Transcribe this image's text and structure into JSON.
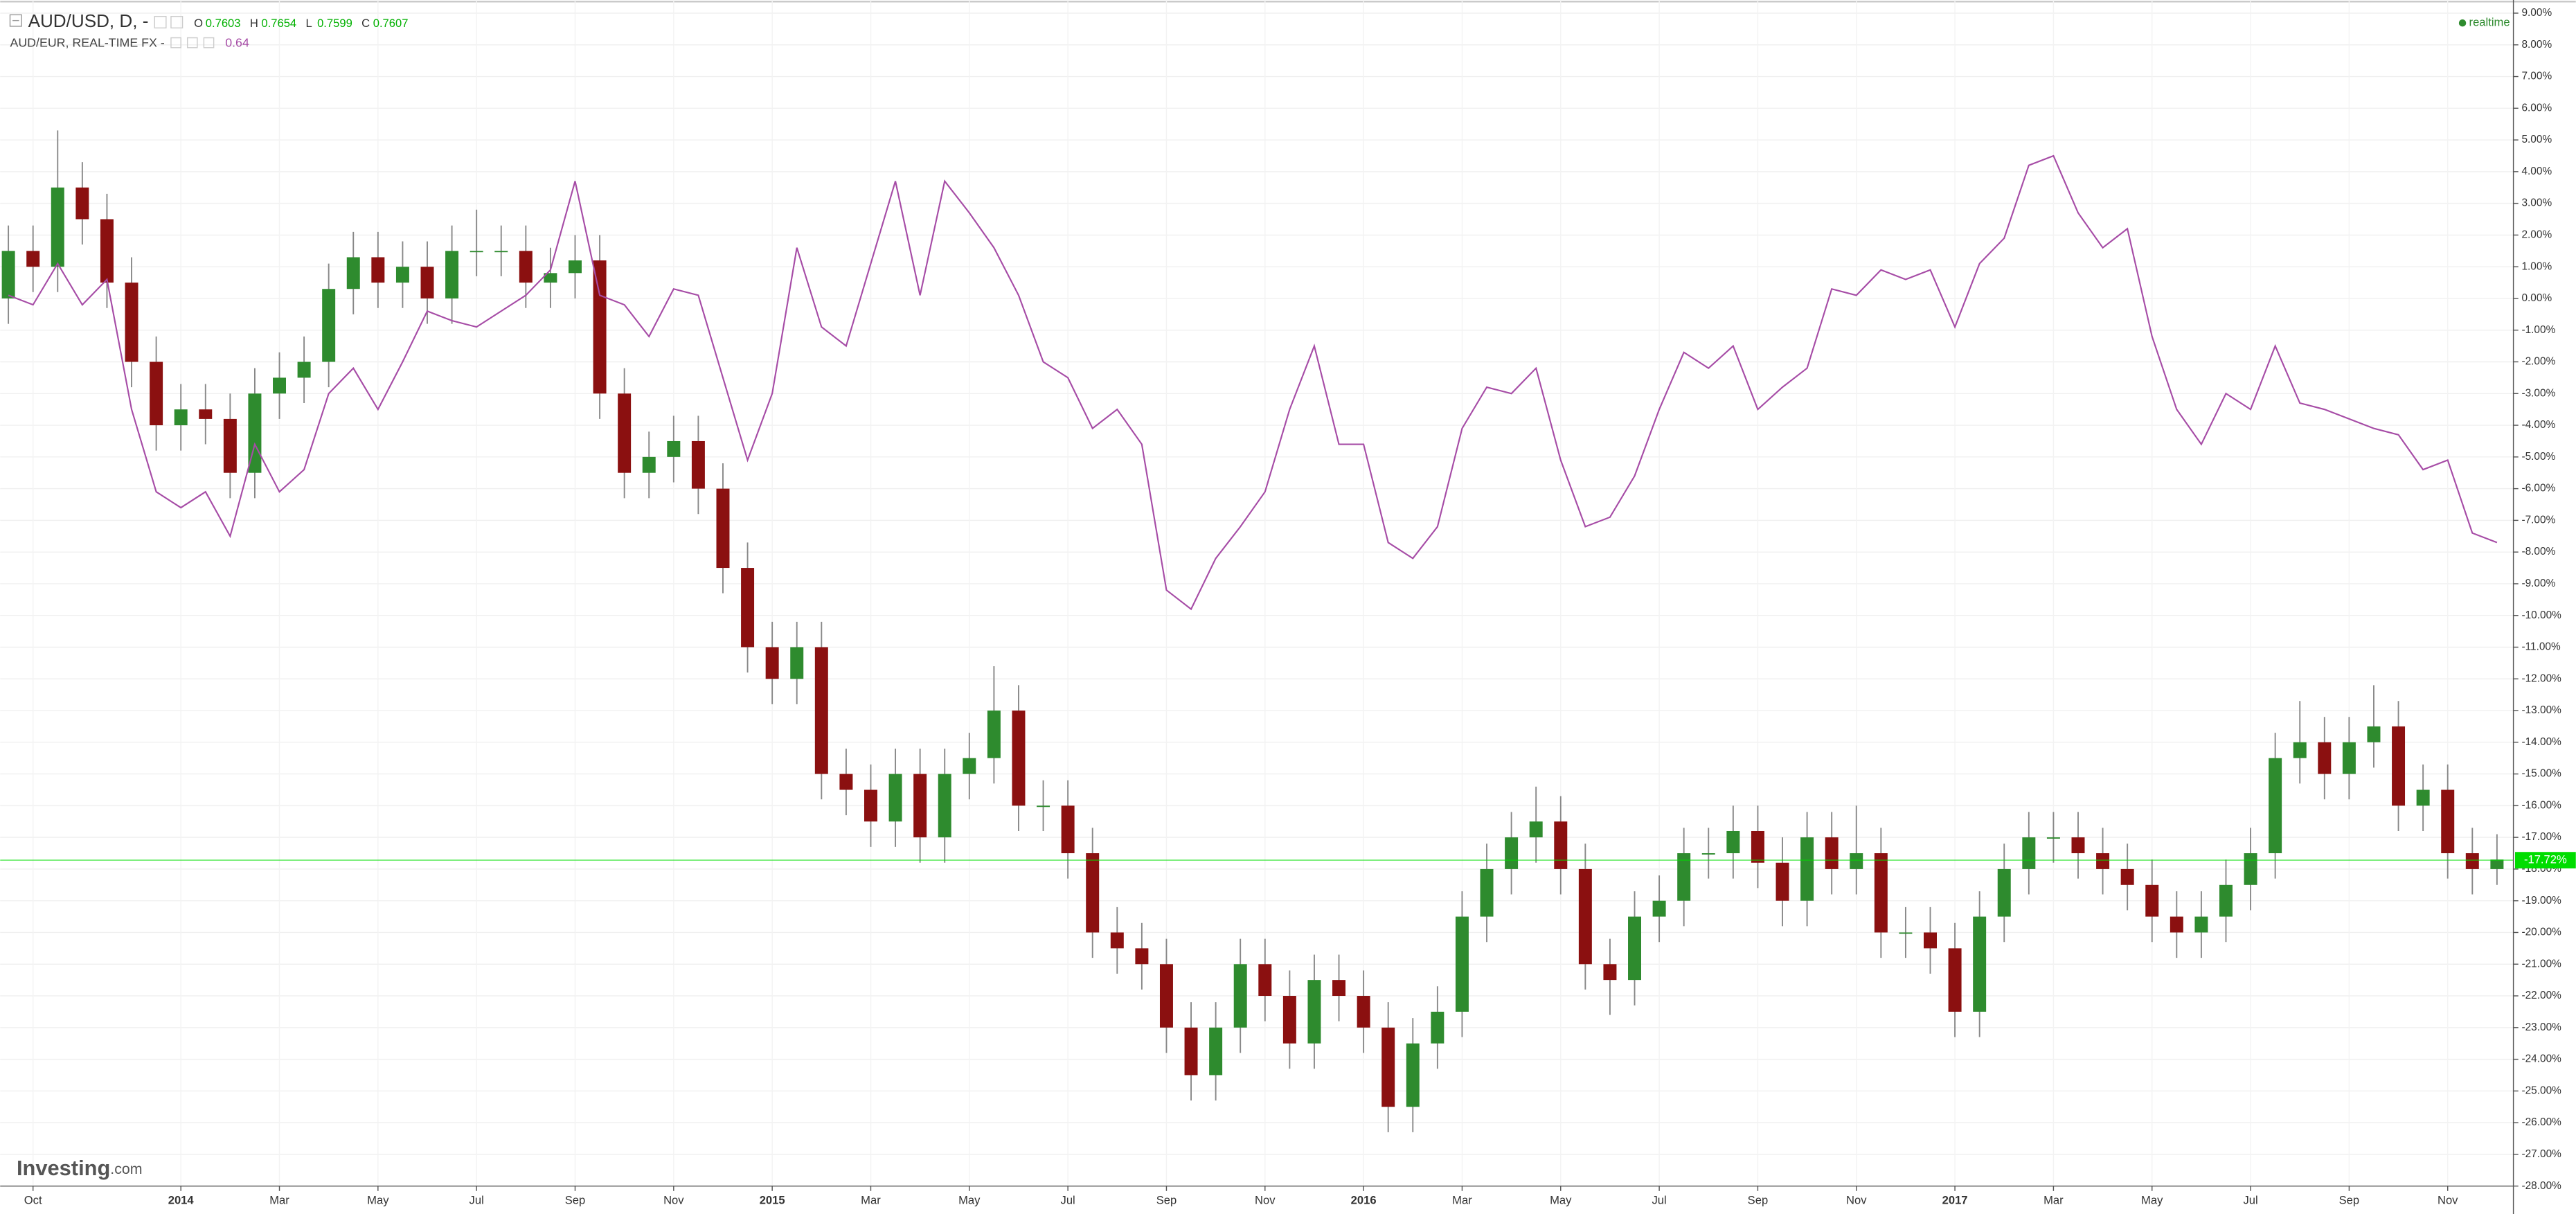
{
  "chart_data": {
    "type": "candlestick",
    "categories": [
      null,
      "Oct",
      null,
      null,
      null,
      null,
      null,
      "2014",
      null,
      null,
      null,
      "Mar",
      null,
      null,
      null,
      "May",
      null,
      null,
      null,
      "Jul",
      null,
      null,
      null,
      "Sep",
      null,
      null,
      null,
      "Nov",
      null,
      null,
      null,
      "2015",
      null,
      null,
      null,
      "Mar",
      null,
      null,
      null,
      "May",
      null,
      null,
      null,
      "Jul",
      null,
      null,
      null,
      "Sep",
      null,
      null,
      null,
      "Nov",
      null,
      null,
      null,
      "2016",
      null,
      null,
      null,
      "Mar",
      null,
      null,
      null,
      "May",
      null,
      null,
      null,
      "Jul",
      null,
      null,
      null,
      "Sep",
      null,
      null,
      null,
      "Nov",
      null,
      null,
      null,
      "2017",
      null,
      null,
      null,
      "Mar",
      null,
      null,
      null,
      "May",
      null,
      null,
      null,
      "Jul",
      null,
      null,
      null,
      "Sep",
      null,
      null,
      null,
      "Nov",
      null,
      null
    ],
    "ylim": [
      -28,
      9
    ],
    "yticks": [
      {
        "value": 9,
        "label": "9.00%"
      },
      {
        "value": 8,
        "label": "8.00%"
      },
      {
        "value": 7,
        "label": "7.00%"
      },
      {
        "value": 6,
        "label": "6.00%"
      },
      {
        "value": 5,
        "label": "5.00%"
      },
      {
        "value": 4,
        "label": "4.00%"
      },
      {
        "value": 3,
        "label": "3.00%"
      },
      {
        "value": 2,
        "label": "2.00%"
      },
      {
        "value": 1,
        "label": "1.00%"
      },
      {
        "value": 0,
        "label": "0.00%"
      },
      {
        "value": -1,
        "label": "-1.00%"
      },
      {
        "value": -2,
        "label": "-2.00%"
      },
      {
        "value": -3,
        "label": "-3.00%"
      },
      {
        "value": -4,
        "label": "-4.00%"
      },
      {
        "value": -5,
        "label": "-5.00%"
      },
      {
        "value": -6,
        "label": "-6.00%"
      },
      {
        "value": -7,
        "label": "-7.00%"
      },
      {
        "value": -8,
        "label": "-8.00%"
      },
      {
        "value": -9,
        "label": "-9.00%"
      },
      {
        "value": -10,
        "label": "-10.00%"
      },
      {
        "value": -11,
        "label": "-11.00%"
      },
      {
        "value": -12,
        "label": "-12.00%"
      },
      {
        "value": -13,
        "label": "-13.00%"
      },
      {
        "value": -14,
        "label": "-14.00%"
      },
      {
        "value": -15,
        "label": "-15.00%"
      },
      {
        "value": -16,
        "label": "-16.00%"
      },
      {
        "value": -17,
        "label": "-17.00%"
      },
      {
        "value": -18,
        "label": "-18.00%"
      },
      {
        "value": -19,
        "label": "-19.00%"
      },
      {
        "value": -20,
        "label": "-20.00%"
      },
      {
        "value": -21,
        "label": "-21.00%"
      },
      {
        "value": -22,
        "label": "-22.00%"
      },
      {
        "value": -23,
        "label": "-23.00%"
      },
      {
        "value": -24,
        "label": "-24.00%"
      },
      {
        "value": -25,
        "label": "-25.00%"
      },
      {
        "value": -26,
        "label": "-26.00%"
      },
      {
        "value": -27,
        "label": "-27.00%"
      },
      {
        "value": -28,
        "label": "-28.00%"
      }
    ],
    "grid": true,
    "price_line": {
      "value": -17.72,
      "label": "-17.72%",
      "color": "#00dd00"
    },
    "status": "realtime",
    "watermark": "Investing",
    "watermark_suffix": ".com",
    "series": [
      {
        "name": "AUD/USD, D, -",
        "type": "candlestick",
        "up_color": "#2e8b2e",
        "down_color": "#8b1010",
        "wick_color": "#888888",
        "ohlc_legend": [
          {
            "label": "O",
            "value": 0.7603
          },
          {
            "label": "H",
            "value": 0.7654
          },
          {
            "label": "L",
            "value": 0.7599
          },
          {
            "label": "C",
            "value": 0.7607
          }
        ],
        "open": [
          0,
          1.5,
          1.0,
          3.5,
          2.5,
          0.5,
          -2.0,
          -4.0,
          -3.5,
          -3.8,
          -5.5,
          -3.0,
          -2.5,
          -2.0,
          0.3,
          1.3,
          0.5,
          1.0,
          0,
          1.5,
          1.5,
          1.5,
          0.5,
          0.8,
          1.2,
          -3.0,
          -5.5,
          -5.0,
          -4.5,
          -6.0,
          -8.5,
          -11.0,
          -12.0,
          -11.0,
          -15.0,
          -15.5,
          -16.5,
          -15.0,
          -17.0,
          -15.0,
          -14.5,
          -13.0,
          -16.0,
          -16.0,
          -17.5,
          -20.0,
          -20.5,
          -21.0,
          -23.0,
          -24.5,
          -23.0,
          -21.0,
          -22.0,
          -23.5,
          -21.5,
          -22.0,
          -23.0,
          -25.5,
          -23.5,
          -22.5,
          -19.5,
          -18.0,
          -17.0,
          -16.5,
          -18.0,
          -21.0,
          -21.5,
          -19.5,
          -19.0,
          -17.5,
          -17.5,
          -16.8,
          -17.8,
          -19.0,
          -17.0,
          -18.0,
          -17.5,
          -20.0,
          -20.0,
          -20.5,
          -22.5,
          -19.5,
          -18.0,
          -17.0,
          -17.0,
          -17.5,
          -18.0,
          -18.5,
          -19.5,
          -20.0,
          -19.5,
          -18.5,
          -17.5,
          -14.5,
          -14.0,
          -15.0,
          -14.0,
          -13.5,
          -16.0,
          -15.5,
          -17.5,
          -18.0
        ],
        "high": [
          2.3,
          2.3,
          5.3,
          4.3,
          3.3,
          1.3,
          -1.2,
          -2.7,
          -2.7,
          -3.0,
          -2.2,
          -1.7,
          -1.2,
          1.1,
          2.1,
          2.1,
          1.8,
          1.8,
          2.3,
          2.8,
          2.3,
          2.3,
          1.6,
          2.0,
          2.0,
          -2.2,
          -4.2,
          -3.7,
          -3.7,
          -5.2,
          -7.7,
          -10.2,
          -10.2,
          -10.2,
          -14.2,
          -14.7,
          -14.2,
          -14.2,
          -14.2,
          -13.7,
          -11.6,
          -12.2,
          -15.2,
          -15.2,
          -16.7,
          -19.2,
          -19.7,
          -20.2,
          -22.2,
          -22.2,
          -20.2,
          -20.2,
          -21.2,
          -20.7,
          -20.7,
          -21.2,
          -22.2,
          -22.7,
          -21.7,
          -18.7,
          -17.2,
          -16.2,
          -15.4,
          -15.7,
          -17.2,
          -20.2,
          -18.7,
          -18.2,
          -16.7,
          -16.7,
          -16.0,
          -16.0,
          -17.0,
          -16.2,
          -16.2,
          -16.0,
          -16.7,
          -19.2,
          -19.2,
          -19.7,
          -18.7,
          -17.2,
          -16.2,
          -16.2,
          -16.2,
          -16.7,
          -17.2,
          -17.7,
          -18.7,
          -18.7,
          -17.7,
          -16.7,
          -13.7,
          -12.7,
          -13.2,
          -13.2,
          -12.2,
          -12.7,
          -14.7,
          -14.7,
          -16.7,
          -16.9
        ],
        "low": [
          -0.8,
          0.2,
          0.2,
          1.7,
          -0.3,
          -2.8,
          -4.8,
          -4.8,
          -4.6,
          -6.3,
          -6.3,
          -3.8,
          -3.3,
          -2.8,
          -0.5,
          -0.3,
          -0.3,
          -0.8,
          -0.8,
          0.7,
          0.7,
          -0.3,
          -0.3,
          0,
          -3.8,
          -6.3,
          -6.3,
          -5.8,
          -6.8,
          -9.3,
          -11.8,
          -12.8,
          -12.8,
          -15.8,
          -16.3,
          -17.3,
          -17.3,
          -17.8,
          -17.8,
          -15.8,
          -15.3,
          -16.8,
          -16.8,
          -18.3,
          -20.8,
          -21.3,
          -21.8,
          -23.8,
          -25.3,
          -25.3,
          -23.8,
          -22.8,
          -24.3,
          -24.3,
          -22.8,
          -23.8,
          -26.3,
          -26.3,
          -24.3,
          -23.3,
          -20.3,
          -18.8,
          -17.8,
          -18.8,
          -21.8,
          -22.6,
          -22.3,
          -20.3,
          -19.8,
          -18.3,
          -18.3,
          -18.6,
          -19.8,
          -19.8,
          -18.8,
          -18.8,
          -20.8,
          -20.8,
          -21.3,
          -23.3,
          -23.3,
          -20.3,
          -18.8,
          -17.8,
          -18.3,
          -18.8,
          -19.3,
          -20.3,
          -20.8,
          -20.8,
          -20.3,
          -19.3,
          -18.3,
          -15.3,
          -15.8,
          -15.8,
          -14.8,
          -16.8,
          -16.8,
          -18.3,
          -18.8,
          -18.5
        ],
        "close": [
          1.5,
          1.0,
          3.5,
          2.5,
          0.5,
          -2.0,
          -4.0,
          -3.5,
          -3.8,
          -5.5,
          -3.0,
          -2.5,
          -2.0,
          0.3,
          1.3,
          0.5,
          1.0,
          0,
          1.5,
          1.5,
          1.5,
          0.5,
          0.8,
          1.2,
          -3.0,
          -5.5,
          -5.0,
          -4.5,
          -6.0,
          -8.5,
          -11.0,
          -12.0,
          -11.0,
          -15.0,
          -15.5,
          -16.5,
          -15.0,
          -17.0,
          -15.0,
          -14.5,
          -13.0,
          -16.0,
          -16.0,
          -17.5,
          -20.0,
          -20.5,
          -21.0,
          -23.0,
          -24.5,
          -23.0,
          -21.0,
          -22.0,
          -23.5,
          -21.5,
          -22.0,
          -23.0,
          -25.5,
          -23.5,
          -22.5,
          -19.5,
          -18.0,
          -17.0,
          -16.5,
          -18.0,
          -21.0,
          -21.5,
          -19.5,
          -19.0,
          -17.5,
          -17.5,
          -16.8,
          -17.8,
          -19.0,
          -17.0,
          -18.0,
          -17.5,
          -20.0,
          -20.0,
          -20.5,
          -22.5,
          -19.5,
          -18.0,
          -17.0,
          -17.0,
          -17.5,
          -18.0,
          -18.5,
          -19.5,
          -20.0,
          -19.5,
          -18.5,
          -17.5,
          -14.5,
          -14.0,
          -15.0,
          -14.0,
          -13.5,
          -16.0,
          -15.5,
          -17.5,
          -18.0,
          -17.7
        ]
      },
      {
        "name": "AUD/EUR, REAL-TIME FX -",
        "type": "line",
        "color": "#a64ca6",
        "legend_value": 0.64,
        "values": [
          0.1,
          -0.2,
          1.1,
          -0.2,
          0.6,
          -3.5,
          -6.1,
          -6.6,
          -6.1,
          -7.5,
          -4.6,
          -6.1,
          -5.4,
          -3.0,
          -2.2,
          -3.5,
          -2.0,
          -0.4,
          -0.7,
          -0.9,
          -0.4,
          0.1,
          0.9,
          3.7,
          0.1,
          -0.2,
          -1.2,
          0.3,
          0.1,
          -2.5,
          -5.1,
          -3.0,
          1.6,
          -0.9,
          -1.5,
          1.1,
          3.7,
          0.1,
          3.7,
          2.7,
          1.6,
          0.1,
          -2.0,
          -2.5,
          -4.1,
          -3.5,
          -4.6,
          -9.2,
          -9.8,
          -8.2,
          -7.2,
          -6.1,
          -3.5,
          -1.5,
          -4.6,
          -4.6,
          -7.7,
          -8.2,
          -7.2,
          -4.1,
          -2.8,
          -3.0,
          -2.2,
          -5.1,
          -7.2,
          -6.9,
          -5.6,
          -3.5,
          -1.7,
          -2.2,
          -1.5,
          -3.5,
          -2.8,
          -2.2,
          0.3,
          0.1,
          0.9,
          0.6,
          0.9,
          -0.9,
          1.1,
          1.9,
          4.2,
          4.5,
          2.7,
          1.6,
          2.2,
          -1.2,
          -3.5,
          -4.6,
          -3.0,
          -3.5,
          -1.5,
          -3.3,
          -3.5,
          -3.8,
          -4.1,
          -4.3,
          -5.4,
          -5.1,
          -7.4,
          -7.7
        ]
      }
    ]
  }
}
